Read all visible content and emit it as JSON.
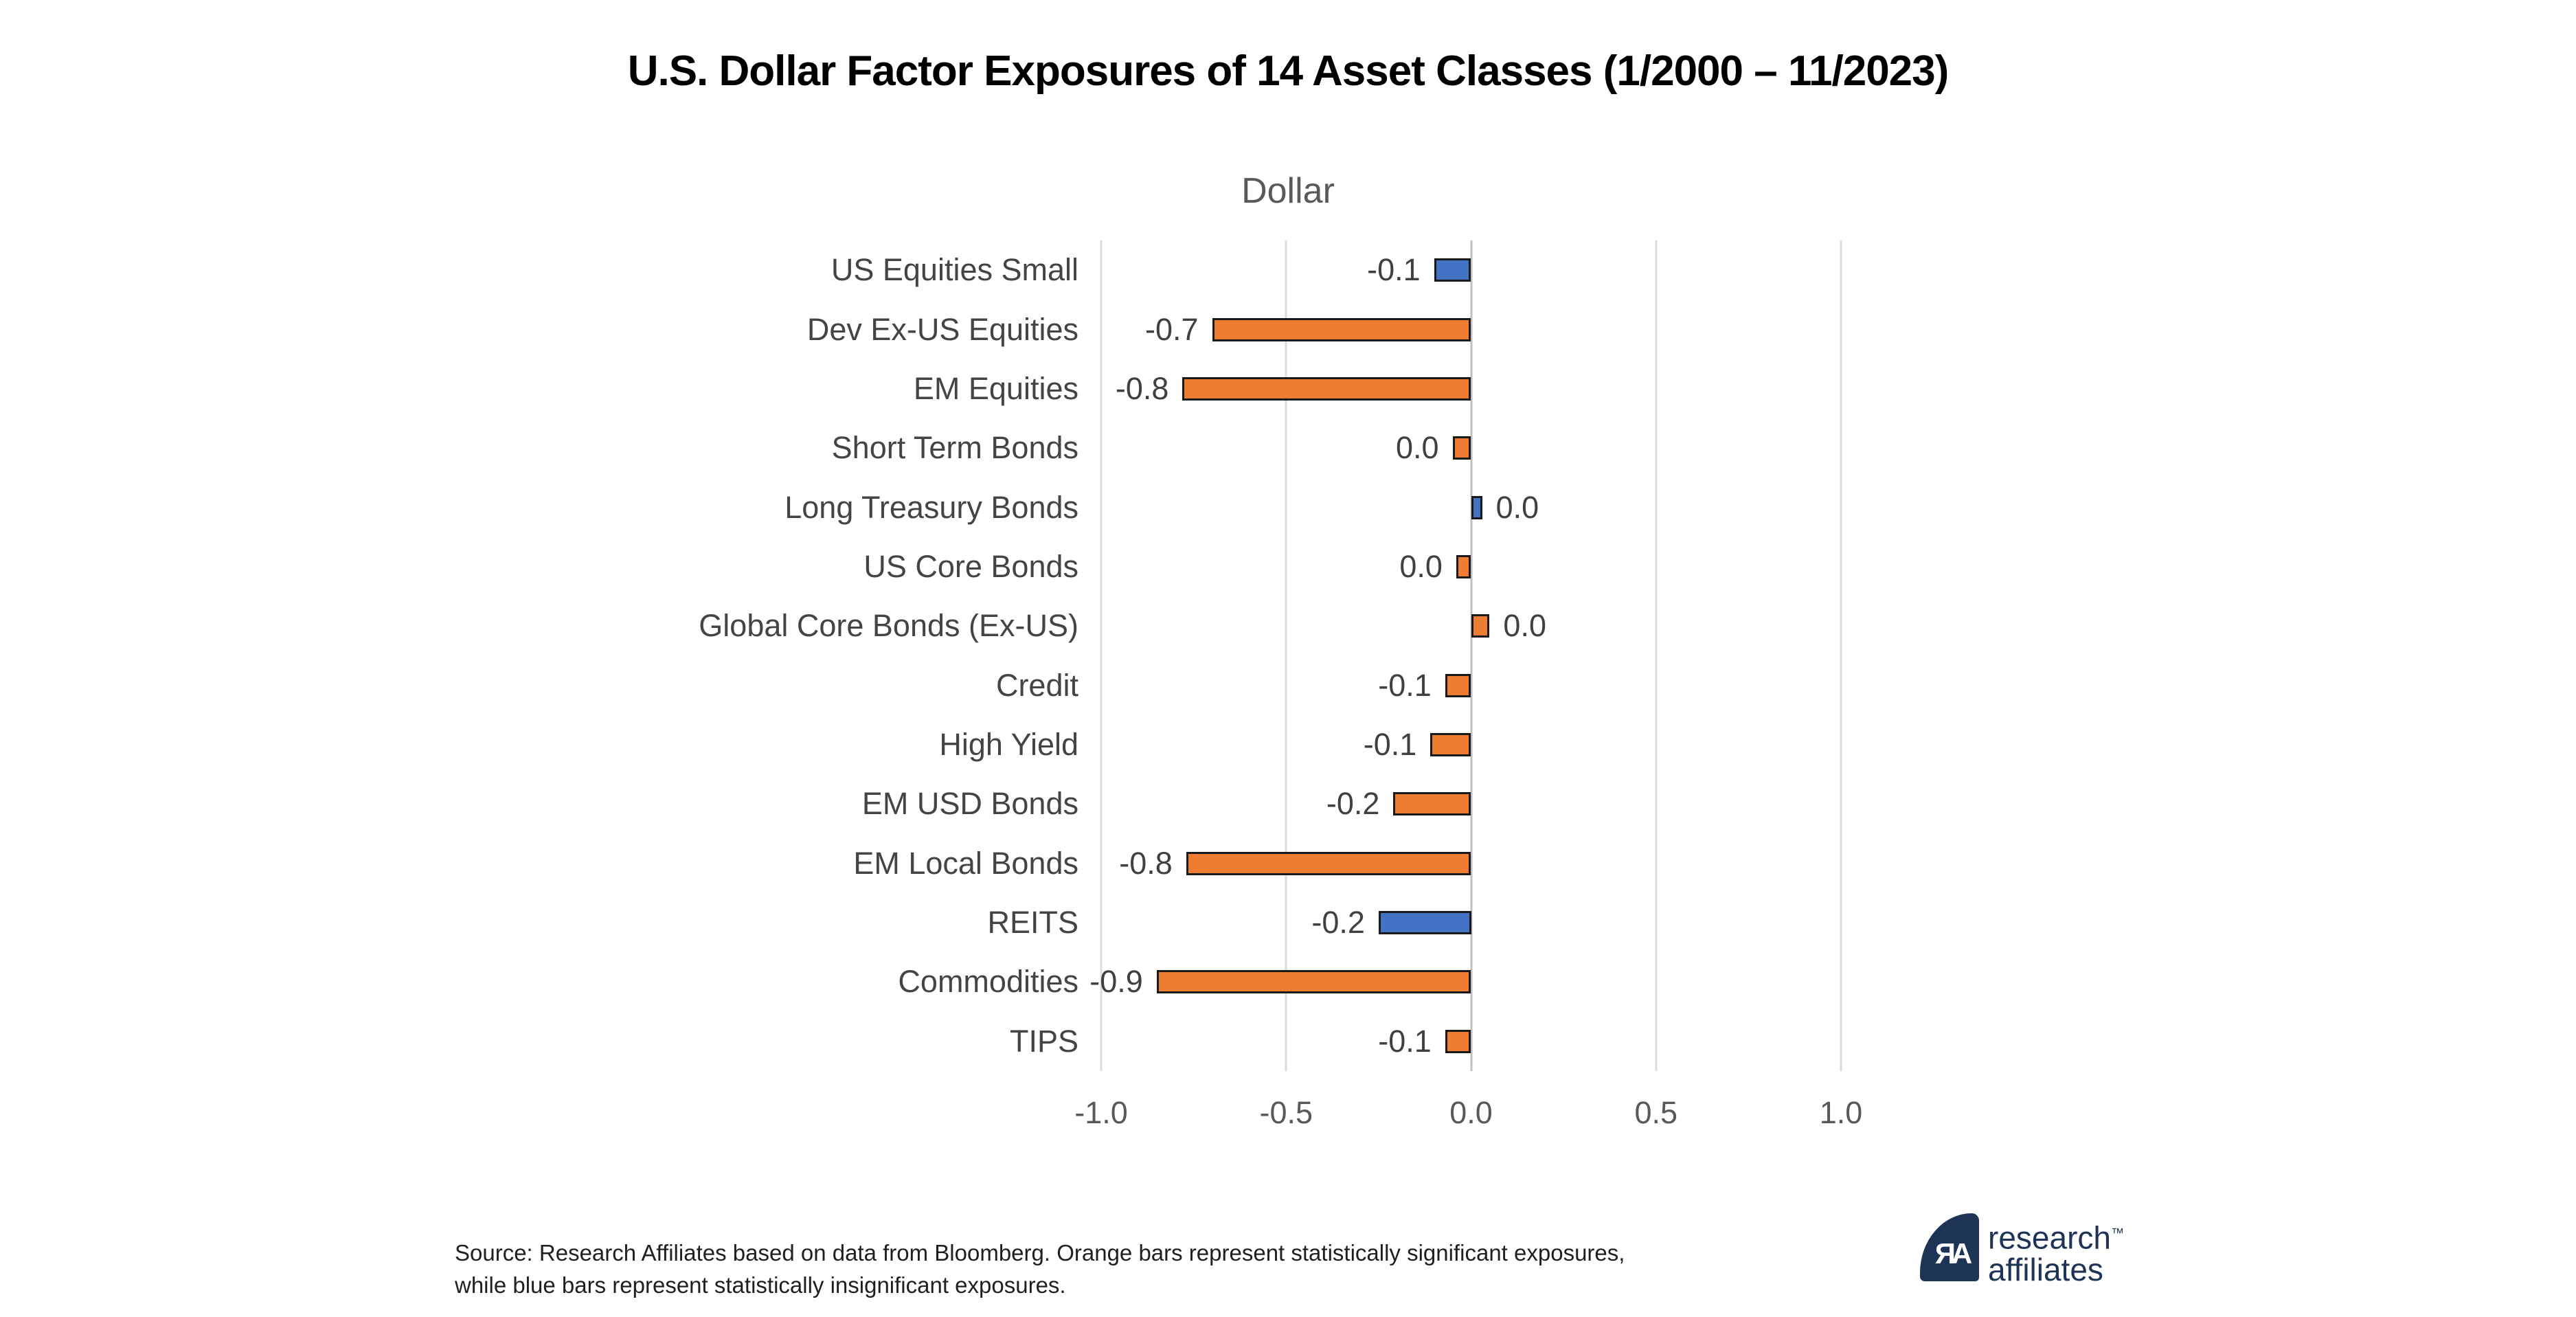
{
  "chart_data": {
    "type": "bar",
    "orientation": "horizontal",
    "title": "U.S. Dollar Factor Exposures of 14 Asset Classes (1/2000 – 11/2023)",
    "subtitle": "Dollar",
    "categories": [
      "US Equities Small",
      "Dev Ex-US Equities",
      "EM Equities",
      "Short Term Bonds",
      "Long Treasury Bonds",
      "US Core Bonds",
      "Global Core Bonds (Ex-US)",
      "Credit",
      "High Yield",
      "EM USD Bonds",
      "EM Local Bonds",
      "REITS",
      "Commodities",
      "TIPS"
    ],
    "values": [
      -0.1,
      -0.7,
      -0.78,
      -0.05,
      0.03,
      -0.04,
      0.05,
      -0.07,
      -0.11,
      -0.21,
      -0.77,
      -0.25,
      -0.85,
      -0.07
    ],
    "value_labels": [
      "-0.1",
      "-0.7",
      "-0.8",
      "0.0",
      "0.0",
      "0.0",
      "0.0",
      "-0.1",
      "-0.1",
      "-0.2",
      "-0.8",
      "-0.2",
      "-0.9",
      "-0.1"
    ],
    "significant": [
      false,
      true,
      true,
      true,
      false,
      true,
      true,
      true,
      true,
      true,
      true,
      false,
      true,
      true
    ],
    "xlim": [
      -1.0,
      1.0
    ],
    "x_ticks": [
      {
        "label": "-1.0",
        "value": -1.0
      },
      {
        "label": "-0.5",
        "value": -0.5
      },
      {
        "label": "0.0",
        "value": 0.0
      },
      {
        "label": "0.5",
        "value": 0.5
      },
      {
        "label": "1.0",
        "value": 1.0
      }
    ],
    "grid": true,
    "legend_position": "none",
    "colors": {
      "significant_orange": "#ED7D31",
      "insignificant_blue": "#4472C4",
      "bar_outline": "#1A1A1A",
      "gridline": "#DCDCDC",
      "category_text": "#444444",
      "value_text": "#404040",
      "tick_text": "#595959",
      "subtitle_text": "#595959",
      "title_text": "#000000"
    }
  },
  "footer": {
    "line1": "Source: Research Affiliates based on data from Bloomberg. Orange bars represent statistically significant exposures,",
    "line2": "while blue bars represent statistically insignificant exposures."
  },
  "logo": {
    "monogram": "ЯA",
    "name_line1": "research",
    "name_line2": "affiliates",
    "trademark": "™",
    "navy": "#1E3456"
  }
}
